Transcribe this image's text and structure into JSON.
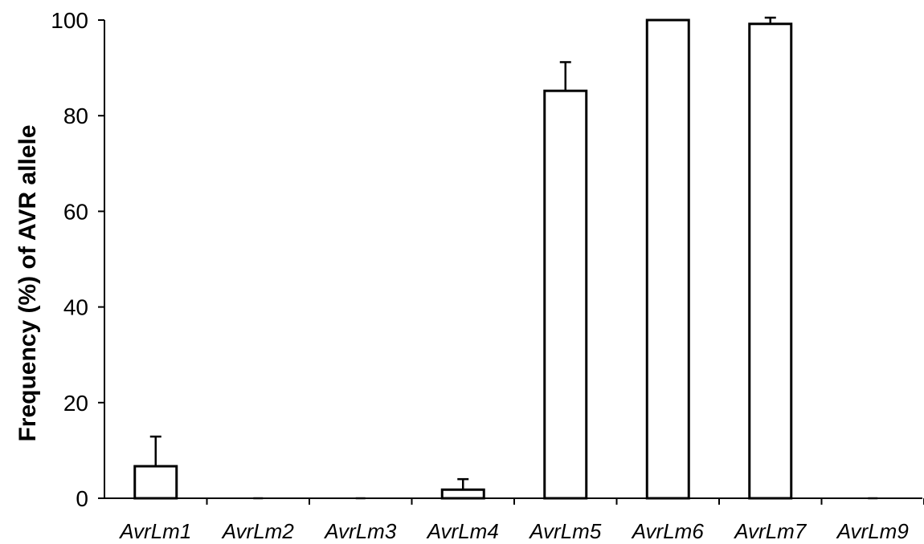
{
  "chart_data": {
    "type": "bar",
    "title": "",
    "xlabel": "",
    "ylabel": "Frequency (%) of AVR allele",
    "ylim": [
      0,
      100
    ],
    "yticks": [
      0,
      20,
      40,
      60,
      80,
      100
    ],
    "grid": false,
    "legend": "none",
    "bar_color": "#ffffff",
    "edge_color": "#000000",
    "categories": [
      "AvrLm1",
      "AvrLm2",
      "AvrLm3",
      "AvrLm4",
      "AvrLm5",
      "AvrLm6",
      "AvrLm7",
      "AvrLm9"
    ],
    "values": [
      6.7,
      0,
      0,
      1.8,
      85.2,
      100,
      99.2,
      0
    ],
    "error_upper": [
      6.2,
      0,
      0,
      2.2,
      6.0,
      0,
      1.3,
      0
    ]
  }
}
